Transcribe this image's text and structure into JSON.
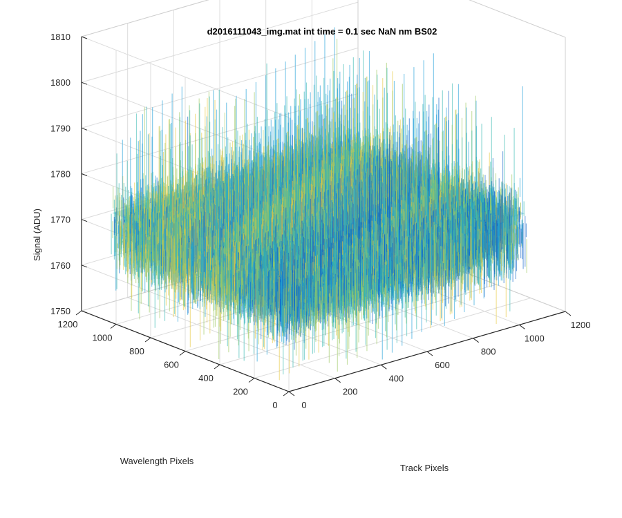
{
  "chart_data": {
    "type": "surface",
    "title": "d2016111043_img.mat int time = 0.1 sec  NaN nm BS02",
    "xlabel": "Track Pixels",
    "ylabel": "Wavelength Pixels",
    "zlabel": "Signal (ADU)",
    "xlim": [
      0,
      1200
    ],
    "ylim": [
      0,
      1200
    ],
    "zlim": [
      1750,
      1810
    ],
    "xticks": [
      "0",
      "200",
      "400",
      "600",
      "800",
      "1000",
      "1200"
    ],
    "yticks": [
      "0",
      "200",
      "400",
      "600",
      "800",
      "1000",
      "1200"
    ],
    "zticks": [
      "1750",
      "1760",
      "1770",
      "1780",
      "1790",
      "1800",
      "1810"
    ],
    "grid": true,
    "data_extent": {
      "x": [
        0,
        1024
      ],
      "y": [
        0,
        1024
      ]
    },
    "signal_mean": 1770,
    "signal_range": [
      1752,
      1806
    ],
    "colormap": [
      "#0c62c9",
      "#1f9ed8",
      "#35b8b0",
      "#9bc860",
      "#e8c840"
    ]
  }
}
